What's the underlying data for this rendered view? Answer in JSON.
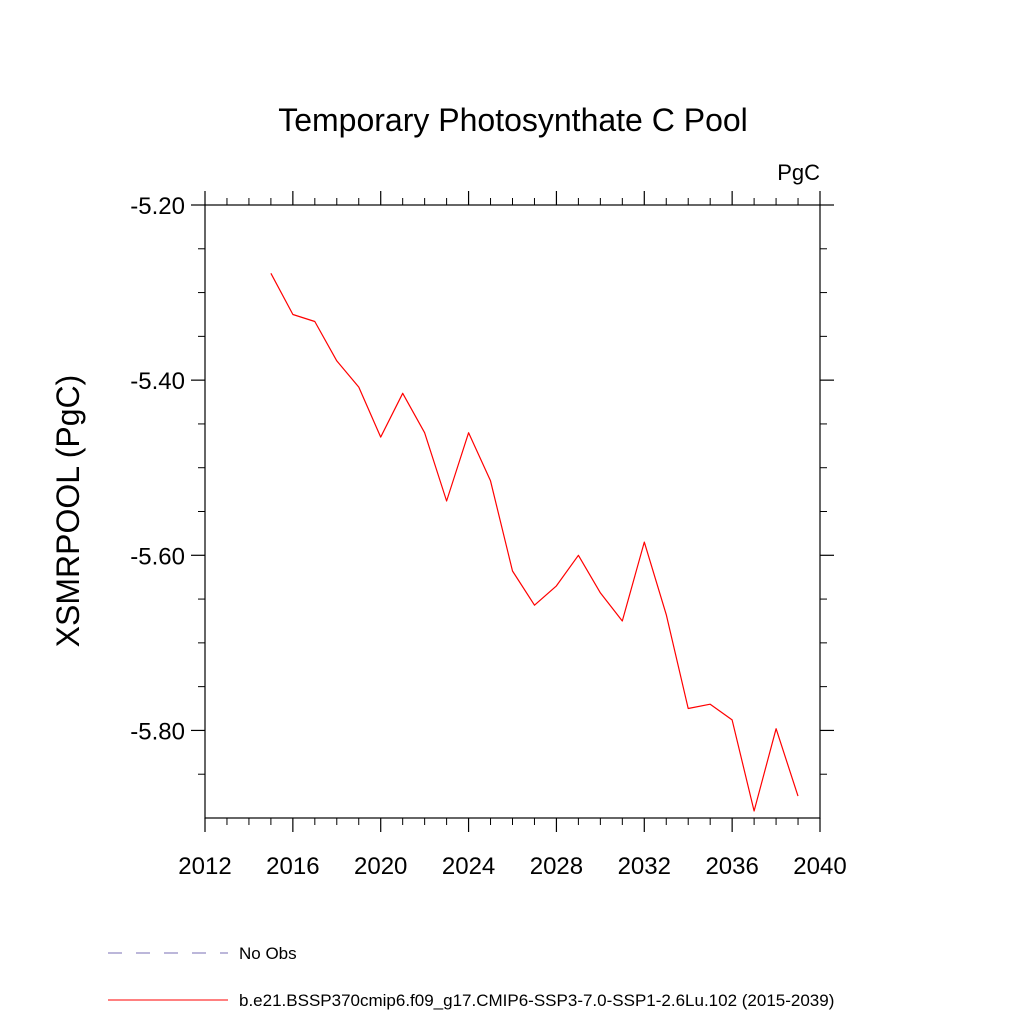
{
  "chart_data": {
    "type": "line",
    "title": "Temporary Photosynthate C Pool",
    "units_label": "PgC",
    "ylabel": "XSMRPOOL  (PgC)",
    "xlabel": "",
    "xlim": [
      2012,
      2040
    ],
    "ylim": [
      -5.9,
      -5.18
    ],
    "xticks_major": [
      2012,
      2016,
      2020,
      2024,
      2028,
      2032,
      2036,
      2040
    ],
    "xticks_minor": [
      2013,
      2014,
      2015,
      2017,
      2018,
      2019,
      2021,
      2022,
      2023,
      2025,
      2026,
      2027,
      2029,
      2030,
      2031,
      2033,
      2034,
      2035,
      2037,
      2038,
      2039
    ],
    "yticks_major": [
      -5.2,
      -5.4,
      -5.6,
      -5.8
    ],
    "ytick_labels": [
      "-5.20",
      "-5.40",
      "-5.60",
      "-5.80"
    ],
    "yticks_minor": [
      -5.25,
      -5.3,
      -5.35,
      -5.45,
      -5.5,
      -5.55,
      -5.65,
      -5.7,
      -5.75,
      -5.85
    ],
    "grid": false,
    "legend_position": "bottom",
    "series": [
      {
        "name": "b.e21.BSSP370cmip6.f09_g17.CMIP6-SSP3-7.0-SSP1-2.6Lu.102 (2015-2039)",
        "color": "#ff0000",
        "x": [
          2015,
          2016,
          2017,
          2018,
          2019,
          2020,
          2021,
          2022,
          2023,
          2024,
          2025,
          2026,
          2027,
          2028,
          2029,
          2030,
          2031,
          2032,
          2033,
          2034,
          2035,
          2036,
          2037,
          2038,
          2039
        ],
        "y": [
          -5.278,
          -5.325,
          -5.333,
          -5.378,
          -5.408,
          -5.465,
          -5.415,
          -5.46,
          -5.538,
          -5.46,
          -5.515,
          -5.618,
          -5.657,
          -5.635,
          -5.6,
          -5.643,
          -5.675,
          -5.585,
          -5.668,
          -5.775,
          -5.77,
          -5.788,
          -5.892,
          -5.798,
          -5.875
        ]
      }
    ],
    "legend": [
      {
        "label": "No Obs",
        "color": "#7a6fb5",
        "style": "dashed"
      },
      {
        "label": "b.e21.BSSP370cmip6.f09_g17.CMIP6-SSP3-7.0-SSP1-2.6Lu.102 (2015-2039)",
        "color": "#ff0000",
        "style": "solid"
      }
    ]
  }
}
